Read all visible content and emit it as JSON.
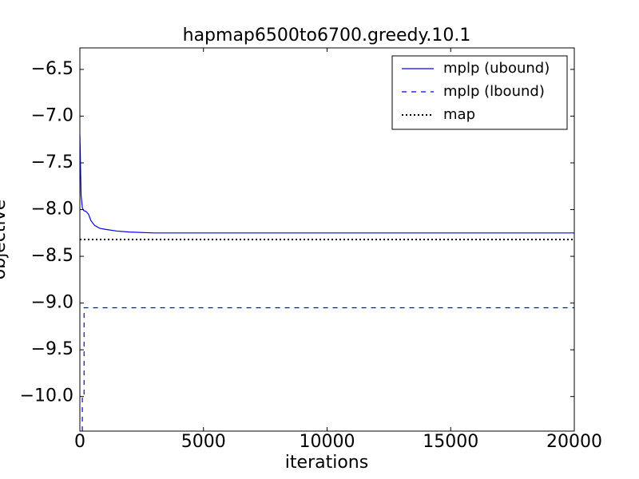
{
  "chart_data": {
    "type": "line",
    "title": "hapmap6500to6700.greedy.10.1",
    "xlabel": "iterations",
    "ylabel": "objective",
    "xlim": [
      0,
      20000
    ],
    "ylim": [
      -10.37,
      -6.27
    ],
    "xticks": [
      0,
      5000,
      10000,
      15000,
      20000
    ],
    "yticks": [
      {
        "value": -6.5,
        "label": "−6.5"
      },
      {
        "value": -7.0,
        "label": "−7.0"
      },
      {
        "value": -7.5,
        "label": "−7.5"
      },
      {
        "value": -8.0,
        "label": "−8.0"
      },
      {
        "value": -8.5,
        "label": "−8.5"
      },
      {
        "value": -9.0,
        "label": "−9.0"
      },
      {
        "value": -9.5,
        "label": "−9.5"
      },
      {
        "value": -10.0,
        "label": "−10.0"
      }
    ],
    "legend": "upper right",
    "series": [
      {
        "name": "mplp (ubound)",
        "color": "#0000ff",
        "linestyle": "solid",
        "x": [
          0,
          50,
          100,
          150,
          250,
          350,
          450,
          600,
          800,
          1000,
          1500,
          2000,
          3000,
          5000,
          10000,
          20000
        ],
        "values": [
          -7.2,
          -7.85,
          -7.98,
          -8.01,
          -8.02,
          -8.05,
          -8.12,
          -8.17,
          -8.2,
          -8.21,
          -8.23,
          -8.24,
          -8.25,
          -8.25,
          -8.25,
          -8.25
        ]
      },
      {
        "name": "mplp (lbound)",
        "color": "#0000ff",
        "linestyle": "dashed",
        "x": [
          100,
          100,
          170,
          170,
          20000
        ],
        "values": [
          -10.37,
          -10.0,
          -10.0,
          -9.05,
          -9.05
        ]
      },
      {
        "name": "map",
        "color": "#000000",
        "linestyle": "dotted",
        "x": [
          0,
          20000
        ],
        "values": [
          -8.32,
          -8.32
        ]
      }
    ]
  }
}
